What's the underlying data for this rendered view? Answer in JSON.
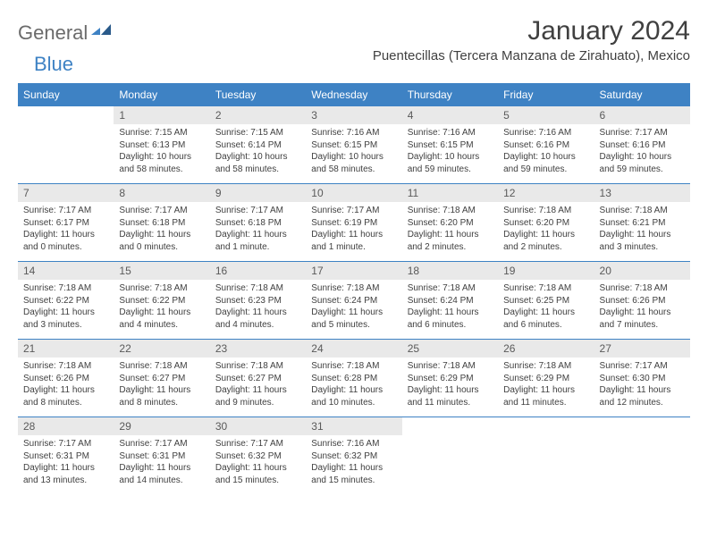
{
  "logo": {
    "text1": "General",
    "text2": "Blue"
  },
  "title": "January 2024",
  "location": "Puentecillas (Tercera Manzana de Zirahuato), Mexico",
  "colors": {
    "header_bg": "#3e82c4",
    "header_text": "#ffffff",
    "daynum_bg": "#e9e9e9",
    "text": "#404040",
    "logo_gray": "#6b6b6b",
    "logo_blue": "#3e82c4",
    "divider": "#3e82c4",
    "background": "#ffffff"
  },
  "typography": {
    "title_fontsize": 30,
    "location_fontsize": 15,
    "dayheader_fontsize": 12,
    "daynum_fontsize": 12,
    "body_fontsize": 10
  },
  "dayHeaders": [
    "Sunday",
    "Monday",
    "Tuesday",
    "Wednesday",
    "Thursday",
    "Friday",
    "Saturday"
  ],
  "weeks": [
    [
      {
        "n": "",
        "sr": "",
        "ss": "",
        "dl": ""
      },
      {
        "n": "1",
        "sr": "Sunrise: 7:15 AM",
        "ss": "Sunset: 6:13 PM",
        "dl": "Daylight: 10 hours and 58 minutes."
      },
      {
        "n": "2",
        "sr": "Sunrise: 7:15 AM",
        "ss": "Sunset: 6:14 PM",
        "dl": "Daylight: 10 hours and 58 minutes."
      },
      {
        "n": "3",
        "sr": "Sunrise: 7:16 AM",
        "ss": "Sunset: 6:15 PM",
        "dl": "Daylight: 10 hours and 58 minutes."
      },
      {
        "n": "4",
        "sr": "Sunrise: 7:16 AM",
        "ss": "Sunset: 6:15 PM",
        "dl": "Daylight: 10 hours and 59 minutes."
      },
      {
        "n": "5",
        "sr": "Sunrise: 7:16 AM",
        "ss": "Sunset: 6:16 PM",
        "dl": "Daylight: 10 hours and 59 minutes."
      },
      {
        "n": "6",
        "sr": "Sunrise: 7:17 AM",
        "ss": "Sunset: 6:16 PM",
        "dl": "Daylight: 10 hours and 59 minutes."
      }
    ],
    [
      {
        "n": "7",
        "sr": "Sunrise: 7:17 AM",
        "ss": "Sunset: 6:17 PM",
        "dl": "Daylight: 11 hours and 0 minutes."
      },
      {
        "n": "8",
        "sr": "Sunrise: 7:17 AM",
        "ss": "Sunset: 6:18 PM",
        "dl": "Daylight: 11 hours and 0 minutes."
      },
      {
        "n": "9",
        "sr": "Sunrise: 7:17 AM",
        "ss": "Sunset: 6:18 PM",
        "dl": "Daylight: 11 hours and 1 minute."
      },
      {
        "n": "10",
        "sr": "Sunrise: 7:17 AM",
        "ss": "Sunset: 6:19 PM",
        "dl": "Daylight: 11 hours and 1 minute."
      },
      {
        "n": "11",
        "sr": "Sunrise: 7:18 AM",
        "ss": "Sunset: 6:20 PM",
        "dl": "Daylight: 11 hours and 2 minutes."
      },
      {
        "n": "12",
        "sr": "Sunrise: 7:18 AM",
        "ss": "Sunset: 6:20 PM",
        "dl": "Daylight: 11 hours and 2 minutes."
      },
      {
        "n": "13",
        "sr": "Sunrise: 7:18 AM",
        "ss": "Sunset: 6:21 PM",
        "dl": "Daylight: 11 hours and 3 minutes."
      }
    ],
    [
      {
        "n": "14",
        "sr": "Sunrise: 7:18 AM",
        "ss": "Sunset: 6:22 PM",
        "dl": "Daylight: 11 hours and 3 minutes."
      },
      {
        "n": "15",
        "sr": "Sunrise: 7:18 AM",
        "ss": "Sunset: 6:22 PM",
        "dl": "Daylight: 11 hours and 4 minutes."
      },
      {
        "n": "16",
        "sr": "Sunrise: 7:18 AM",
        "ss": "Sunset: 6:23 PM",
        "dl": "Daylight: 11 hours and 4 minutes."
      },
      {
        "n": "17",
        "sr": "Sunrise: 7:18 AM",
        "ss": "Sunset: 6:24 PM",
        "dl": "Daylight: 11 hours and 5 minutes."
      },
      {
        "n": "18",
        "sr": "Sunrise: 7:18 AM",
        "ss": "Sunset: 6:24 PM",
        "dl": "Daylight: 11 hours and 6 minutes."
      },
      {
        "n": "19",
        "sr": "Sunrise: 7:18 AM",
        "ss": "Sunset: 6:25 PM",
        "dl": "Daylight: 11 hours and 6 minutes."
      },
      {
        "n": "20",
        "sr": "Sunrise: 7:18 AM",
        "ss": "Sunset: 6:26 PM",
        "dl": "Daylight: 11 hours and 7 minutes."
      }
    ],
    [
      {
        "n": "21",
        "sr": "Sunrise: 7:18 AM",
        "ss": "Sunset: 6:26 PM",
        "dl": "Daylight: 11 hours and 8 minutes."
      },
      {
        "n": "22",
        "sr": "Sunrise: 7:18 AM",
        "ss": "Sunset: 6:27 PM",
        "dl": "Daylight: 11 hours and 8 minutes."
      },
      {
        "n": "23",
        "sr": "Sunrise: 7:18 AM",
        "ss": "Sunset: 6:27 PM",
        "dl": "Daylight: 11 hours and 9 minutes."
      },
      {
        "n": "24",
        "sr": "Sunrise: 7:18 AM",
        "ss": "Sunset: 6:28 PM",
        "dl": "Daylight: 11 hours and 10 minutes."
      },
      {
        "n": "25",
        "sr": "Sunrise: 7:18 AM",
        "ss": "Sunset: 6:29 PM",
        "dl": "Daylight: 11 hours and 11 minutes."
      },
      {
        "n": "26",
        "sr": "Sunrise: 7:18 AM",
        "ss": "Sunset: 6:29 PM",
        "dl": "Daylight: 11 hours and 11 minutes."
      },
      {
        "n": "27",
        "sr": "Sunrise: 7:17 AM",
        "ss": "Sunset: 6:30 PM",
        "dl": "Daylight: 11 hours and 12 minutes."
      }
    ],
    [
      {
        "n": "28",
        "sr": "Sunrise: 7:17 AM",
        "ss": "Sunset: 6:31 PM",
        "dl": "Daylight: 11 hours and 13 minutes."
      },
      {
        "n": "29",
        "sr": "Sunrise: 7:17 AM",
        "ss": "Sunset: 6:31 PM",
        "dl": "Daylight: 11 hours and 14 minutes."
      },
      {
        "n": "30",
        "sr": "Sunrise: 7:17 AM",
        "ss": "Sunset: 6:32 PM",
        "dl": "Daylight: 11 hours and 15 minutes."
      },
      {
        "n": "31",
        "sr": "Sunrise: 7:16 AM",
        "ss": "Sunset: 6:32 PM",
        "dl": "Daylight: 11 hours and 15 minutes."
      },
      {
        "n": "",
        "sr": "",
        "ss": "",
        "dl": ""
      },
      {
        "n": "",
        "sr": "",
        "ss": "",
        "dl": ""
      },
      {
        "n": "",
        "sr": "",
        "ss": "",
        "dl": ""
      }
    ]
  ]
}
